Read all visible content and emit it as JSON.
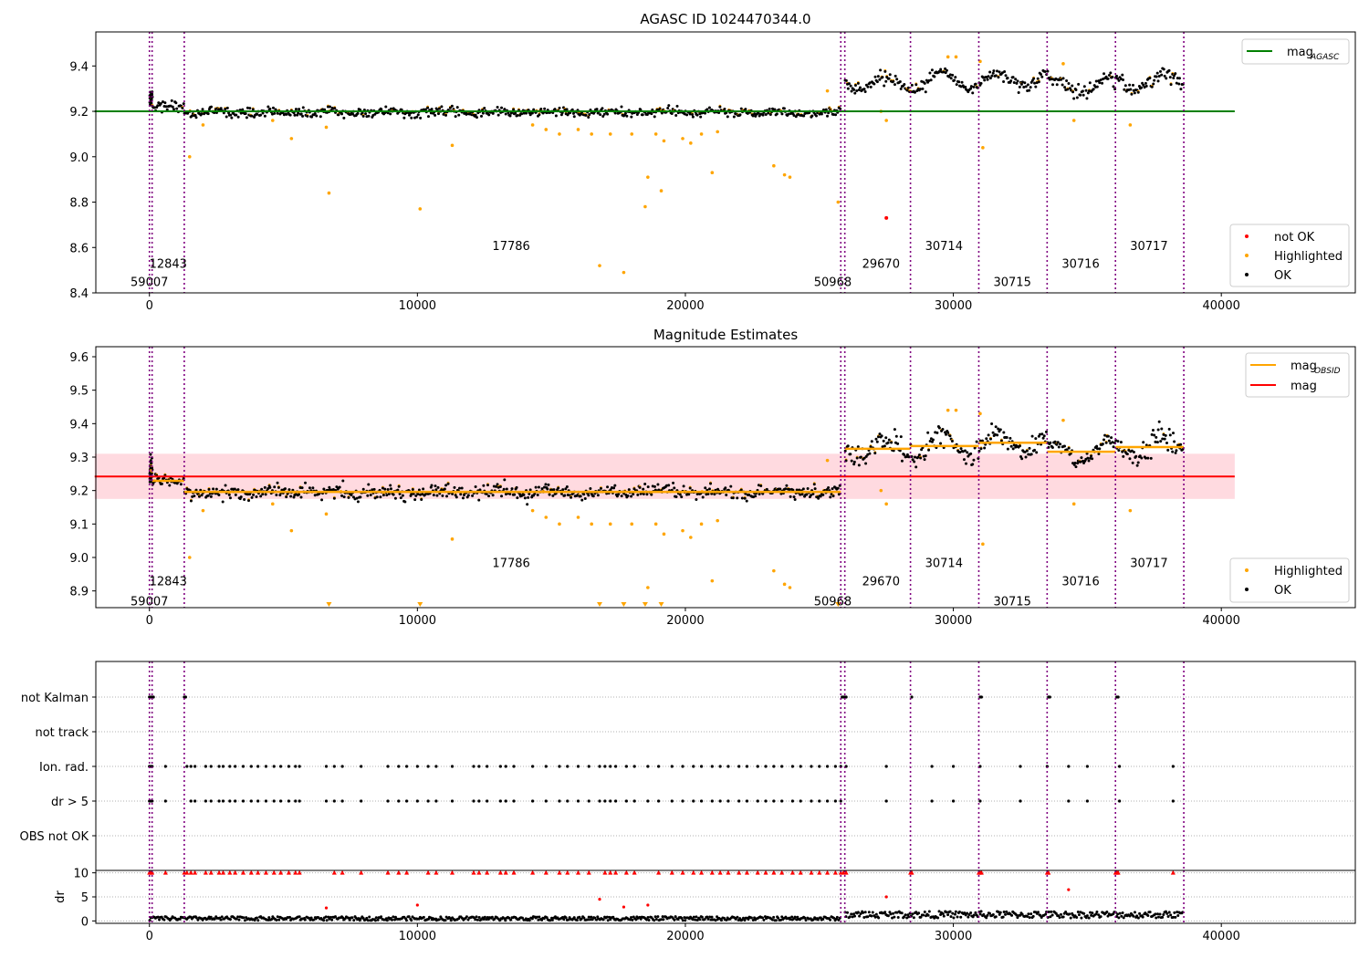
{
  "chart_data": [
    {
      "type": "scatter",
      "title": "AGASC ID 1024470344.0",
      "xlabel": "",
      "ylabel": "",
      "xlim": [
        -2000,
        45000
      ],
      "ylim": [
        8.4,
        9.55
      ],
      "xticks": [
        0,
        10000,
        20000,
        30000,
        40000
      ],
      "xtick_labels": [
        "0",
        "10000",
        "20000",
        "30000",
        "40000"
      ],
      "yticks": [
        8.4,
        8.6,
        8.8,
        9.0,
        9.2,
        9.4
      ],
      "ytick_labels": [
        "8.4",
        "8.6",
        "8.8",
        "9.0",
        "9.2",
        "9.4"
      ],
      "legend_upper": {
        "placement": "top-right",
        "entries": [
          {
            "label": "mag",
            "sub": "AGASC",
            "color": "#008000",
            "style": "line"
          }
        ]
      },
      "legend_lower": {
        "placement": "bottom-right",
        "entries": [
          {
            "label": "not OK",
            "color": "#ff0000",
            "style": "dot"
          },
          {
            "label": "Highlighted",
            "color": "#ffa500",
            "style": "dot"
          },
          {
            "label": "OK",
            "color": "#000000",
            "style": "dot"
          }
        ]
      },
      "mag_agasc": {
        "value": 9.2,
        "x_range": [
          0,
          40500
        ],
        "color": "#008000"
      },
      "obs_boundaries": [
        0,
        100,
        1300,
        25800,
        25950,
        28400,
        30950,
        33500,
        36050,
        38600
      ],
      "obs_labels": [
        {
          "text": "59007",
          "x": 0,
          "y": 8.45
        },
        {
          "text": "12843",
          "x": 700,
          "y": 8.53
        },
        {
          "text": "17786",
          "x": 13500,
          "y": 8.61
        },
        {
          "text": "50968",
          "x": 25500,
          "y": 8.45
        },
        {
          "text": "29670",
          "x": 27300,
          "y": 8.53
        },
        {
          "text": "30714",
          "x": 29650,
          "y": 8.61
        },
        {
          "text": "30715",
          "x": 32200,
          "y": 8.45
        },
        {
          "text": "30716",
          "x": 34750,
          "y": 8.53
        },
        {
          "text": "30717",
          "x": 37300,
          "y": 8.61
        }
      ],
      "segments": [
        {
          "x0": 0,
          "x1": 100,
          "mean": 9.26,
          "sigma": 0.02,
          "amp": 0.0
        },
        {
          "x0": 100,
          "x1": 1300,
          "mean": 9.225,
          "sigma": 0.012,
          "amp": 0.0
        },
        {
          "x0": 1300,
          "x1": 25800,
          "mean": 9.195,
          "sigma": 0.01,
          "amp": 0.005
        },
        {
          "x0": 25950,
          "x1": 28400,
          "mean": 9.325,
          "sigma": 0.015,
          "amp": 0.03
        },
        {
          "x0": 28400,
          "x1": 30950,
          "mean": 9.333,
          "sigma": 0.015,
          "amp": 0.035
        },
        {
          "x0": 30950,
          "x1": 33500,
          "mean": 9.343,
          "sigma": 0.015,
          "amp": 0.03
        },
        {
          "x0": 33500,
          "x1": 36050,
          "mean": 9.315,
          "sigma": 0.015,
          "amp": 0.03
        },
        {
          "x0": 36050,
          "x1": 38600,
          "mean": 9.33,
          "sigma": 0.015,
          "amp": 0.035
        }
      ],
      "highlighted_points": [
        [
          1500,
          9.0
        ],
        [
          2000,
          9.14
        ],
        [
          4600,
          9.16
        ],
        [
          5300,
          9.08
        ],
        [
          6600,
          9.13
        ],
        [
          6700,
          8.84
        ],
        [
          10100,
          8.77
        ],
        [
          11300,
          9.05
        ],
        [
          14300,
          9.14
        ],
        [
          14800,
          9.12
        ],
        [
          15300,
          9.1
        ],
        [
          16000,
          9.12
        ],
        [
          16500,
          9.1
        ],
        [
          16800,
          8.52
        ],
        [
          17200,
          9.1
        ],
        [
          17700,
          8.49
        ],
        [
          18000,
          9.1
        ],
        [
          18500,
          8.78
        ],
        [
          18600,
          8.91
        ],
        [
          18900,
          9.1
        ],
        [
          19100,
          8.85
        ],
        [
          19200,
          9.07
        ],
        [
          19900,
          9.08
        ],
        [
          20200,
          9.06
        ],
        [
          20600,
          9.1
        ],
        [
          21000,
          8.93
        ],
        [
          21200,
          9.11
        ],
        [
          23300,
          8.96
        ],
        [
          23700,
          8.92
        ],
        [
          23900,
          8.91
        ],
        [
          25300,
          9.29
        ],
        [
          25700,
          8.8
        ],
        [
          27300,
          9.2
        ],
        [
          27500,
          9.16
        ],
        [
          31100,
          9.04
        ],
        [
          31000,
          9.42
        ],
        [
          34500,
          9.16
        ],
        [
          36600,
          9.14
        ],
        [
          29800,
          9.44
        ],
        [
          30100,
          9.44
        ],
        [
          34100,
          9.41
        ]
      ],
      "notok_points": [
        [
          27500,
          8.73
        ]
      ]
    },
    {
      "type": "scatter",
      "title": "Magnitude Estimates",
      "xlabel": "",
      "ylabel": "",
      "xlim": [
        -2000,
        45000
      ],
      "ylim": [
        8.85,
        9.63
      ],
      "xticks": [
        0,
        10000,
        20000,
        30000,
        40000
      ],
      "xtick_labels": [
        "0",
        "10000",
        "20000",
        "30000",
        "40000"
      ],
      "yticks": [
        8.9,
        9.0,
        9.1,
        9.2,
        9.3,
        9.4,
        9.5,
        9.6
      ],
      "ytick_labels": [
        "8.9",
        "9.0",
        "9.1",
        "9.2",
        "9.3",
        "9.4",
        "9.5",
        "9.6"
      ],
      "legend_upper": {
        "placement": "top-right",
        "entries": [
          {
            "label": "mag",
            "sub": "OBSID",
            "color": "#ffa500",
            "style": "line"
          },
          {
            "label": "mag",
            "sub": "",
            "color": "#ff0000",
            "style": "line"
          }
        ]
      },
      "legend_lower": {
        "placement": "bottom-right",
        "entries": [
          {
            "label": "Highlighted",
            "color": "#ffa500",
            "style": "dot"
          },
          {
            "label": "OK",
            "color": "#000000",
            "style": "dot"
          }
        ]
      },
      "mag": {
        "value": 9.242,
        "band": [
          9.175,
          9.31
        ],
        "x_range": [
          0,
          40500
        ],
        "color": "#ff0000"
      },
      "obs_boundaries": [
        0,
        100,
        1300,
        25800,
        25950,
        28400,
        30950,
        33500,
        36050,
        38600
      ],
      "obs_labels": [
        {
          "text": "59007",
          "x": 0,
          "y": 8.87
        },
        {
          "text": "12843",
          "x": 700,
          "y": 8.93
        },
        {
          "text": "17786",
          "x": 13500,
          "y": 8.985
        },
        {
          "text": "50968",
          "x": 25500,
          "y": 8.87
        },
        {
          "text": "29670",
          "x": 27300,
          "y": 8.93
        },
        {
          "text": "30714",
          "x": 29650,
          "y": 8.985
        },
        {
          "text": "30715",
          "x": 32200,
          "y": 8.87
        },
        {
          "text": "30716",
          "x": 34750,
          "y": 8.93
        },
        {
          "text": "30717",
          "x": 37300,
          "y": 8.985
        }
      ],
      "obsid_mags": [
        {
          "x0": 0,
          "x1": 100,
          "mag": 9.26
        },
        {
          "x0": 100,
          "x1": 1300,
          "mag": 9.229
        },
        {
          "x0": 1300,
          "x1": 25800,
          "mag": 9.196
        },
        {
          "x0": 25950,
          "x1": 28400,
          "mag": 9.325
        },
        {
          "x0": 28400,
          "x1": 30950,
          "mag": 9.333
        },
        {
          "x0": 30950,
          "x1": 33500,
          "mag": 9.343
        },
        {
          "x0": 33500,
          "x1": 36050,
          "mag": 9.316
        },
        {
          "x0": 36050,
          "x1": 38600,
          "mag": 9.33
        }
      ],
      "highlighted_points": [
        [
          1500,
          9.0
        ],
        [
          2000,
          9.14
        ],
        [
          4600,
          9.16
        ],
        [
          5300,
          9.08
        ],
        [
          6600,
          9.13
        ],
        [
          11300,
          9.055
        ],
        [
          14300,
          9.14
        ],
        [
          14800,
          9.12
        ],
        [
          15300,
          9.1
        ],
        [
          16000,
          9.12
        ],
        [
          16500,
          9.1
        ],
        [
          17200,
          9.1
        ],
        [
          18000,
          9.1
        ],
        [
          18600,
          8.91
        ],
        [
          18900,
          9.1
        ],
        [
          19200,
          9.07
        ],
        [
          19900,
          9.08
        ],
        [
          20200,
          9.06
        ],
        [
          20600,
          9.1
        ],
        [
          21000,
          8.93
        ],
        [
          21200,
          9.11
        ],
        [
          23300,
          8.96
        ],
        [
          23700,
          8.92
        ],
        [
          23900,
          8.91
        ],
        [
          25300,
          9.29
        ],
        [
          27300,
          9.2
        ],
        [
          27500,
          9.16
        ],
        [
          31100,
          9.04
        ],
        [
          31000,
          9.43
        ],
        [
          34500,
          9.16
        ],
        [
          36600,
          9.14
        ],
        [
          29800,
          9.44
        ],
        [
          30100,
          9.44
        ],
        [
          34100,
          9.41
        ]
      ],
      "below_range_points": [
        6700,
        10100,
        16800,
        17700,
        18500,
        19100,
        25700
      ]
    },
    {
      "type": "scatter",
      "title": "",
      "xlabel": "",
      "ylabel": "",
      "xlim": [
        -2000,
        45000
      ],
      "categories": [
        "not Kalman",
        "not track",
        "Ion. rad.",
        "dr > 5",
        "OBS not OK"
      ],
      "obs_boundaries": [
        0,
        100,
        1300,
        25800,
        25950,
        28400,
        30950,
        33500,
        36050,
        38600
      ],
      "flags": {
        "not Kalman": [
          0,
          50,
          100,
          150,
          1300,
          1350,
          25850,
          25900,
          25950,
          26000,
          28450,
          31000,
          31050,
          33550,
          33600,
          36100,
          36150
        ],
        "not track": [],
        "Ion. rad.": [
          0,
          50,
          100,
          600,
          1400,
          1550,
          1700,
          2100,
          2300,
          2600,
          2750,
          3000,
          3200,
          3500,
          3800,
          4050,
          4350,
          4650,
          4900,
          5200,
          5450,
          5600,
          6600,
          6900,
          7200,
          7900,
          8900,
          9300,
          9600,
          10000,
          10400,
          10700,
          11300,
          12100,
          12300,
          12600,
          13100,
          13300,
          13600,
          14300,
          14800,
          15300,
          15600,
          16000,
          16400,
          16800,
          17000,
          17200,
          17400,
          17800,
          18100,
          18600,
          19000,
          19500,
          19900,
          20300,
          20600,
          21000,
          21300,
          21600,
          22000,
          22300,
          22700,
          23000,
          23300,
          23600,
          24000,
          24300,
          24700,
          25000,
          25300,
          25600,
          25800,
          26000,
          27500,
          29200,
          30000,
          31000,
          32500,
          33500,
          34300,
          35000,
          36200,
          38200
        ],
        "dr > 5": [
          0,
          50,
          100,
          600,
          1550,
          1700,
          2100,
          2300,
          2600,
          2750,
          3000,
          3200,
          3500,
          3800,
          4050,
          4350,
          4650,
          4900,
          5200,
          5450,
          5600,
          6600,
          6900,
          7200,
          7900,
          8900,
          9300,
          9600,
          10000,
          10400,
          10700,
          11300,
          12100,
          12300,
          12600,
          13100,
          13300,
          13600,
          14300,
          14800,
          15300,
          15600,
          16000,
          16400,
          16800,
          17000,
          17200,
          17400,
          17800,
          18100,
          18600,
          19000,
          19500,
          19900,
          20300,
          20600,
          21000,
          21300,
          21600,
          22000,
          22300,
          22700,
          23000,
          23300,
          23600,
          24000,
          24300,
          24700,
          25000,
          25300,
          25600,
          25800,
          27500,
          29200,
          30000,
          31000,
          32500,
          34300,
          35000,
          36200,
          38200
        ],
        "OBS not OK": []
      }
    },
    {
      "type": "scatter",
      "title": "",
      "xlabel": "",
      "ylabel": "dr",
      "xlim": [
        -2000,
        45000
      ],
      "ylim": [
        -0.5,
        10.5
      ],
      "yticks": [
        0,
        5,
        10
      ],
      "ytick_labels": [
        "0",
        "5",
        "10"
      ],
      "xticks": [
        0,
        10000,
        20000,
        30000,
        40000
      ],
      "xtick_labels": [
        "0",
        "10000",
        "20000",
        "30000",
        "40000"
      ],
      "obs_boundaries": [
        0,
        100,
        1300,
        25800,
        25950,
        28400,
        30950,
        33500,
        36050,
        38600
      ],
      "dr_segments": [
        {
          "x0": 0,
          "x1": 25800,
          "mean": 0.5,
          "spread": 0.4
        },
        {
          "x0": 25950,
          "x1": 38600,
          "mean": 1.3,
          "spread": 0.7
        }
      ],
      "dr_outliers": [
        [
          6600,
          2.7
        ],
        [
          10000,
          3.3
        ],
        [
          16800,
          4.5
        ],
        [
          17700,
          2.9
        ],
        [
          18600,
          3.3
        ],
        [
          27500,
          5.0
        ],
        [
          34300,
          6.5
        ]
      ],
      "clipped_points": [
        0,
        50,
        100,
        600,
        1300,
        1400,
        1550,
        1700,
        2100,
        2300,
        2600,
        2750,
        3000,
        3200,
        3500,
        3800,
        4050,
        4350,
        4650,
        4900,
        5200,
        5450,
        5600,
        6900,
        7200,
        7900,
        8900,
        9300,
        9600,
        10400,
        10700,
        11300,
        12100,
        12300,
        12600,
        13100,
        13300,
        13600,
        14300,
        14800,
        15300,
        15600,
        16000,
        16400,
        17000,
        17200,
        17400,
        17800,
        18100,
        19000,
        19500,
        19900,
        20300,
        20600,
        21000,
        21300,
        21600,
        22000,
        22300,
        22700,
        23000,
        23300,
        23600,
        24000,
        24300,
        24700,
        25000,
        25300,
        25600,
        25800,
        25900,
        26000,
        28400,
        28450,
        30950,
        31000,
        31050,
        33500,
        33550,
        36050,
        36100,
        36150,
        38200
      ]
    }
  ]
}
